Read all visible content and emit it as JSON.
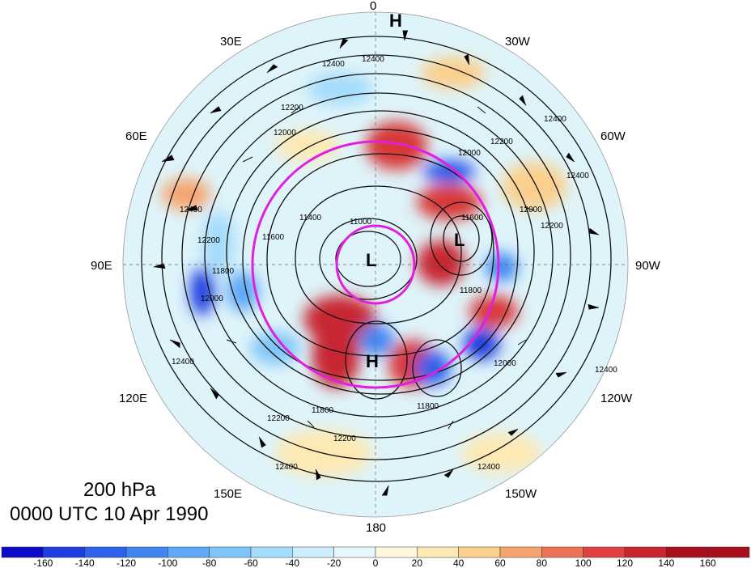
{
  "title": {
    "level": "200 hPa",
    "time": "0000 UTC 10 Apr 1990"
  },
  "map": {
    "projection": "north-polar-stereographic",
    "longitude_labels": [
      "0",
      "30W",
      "60W",
      "90W",
      "120W",
      "150W",
      "180",
      "150E",
      "120E",
      "90E",
      "60E",
      "30E"
    ],
    "contour_labels": [
      "12400",
      "12400",
      "12200",
      "12000",
      "12000",
      "12200",
      "12400",
      "12400",
      "12200",
      "12000",
      "11800",
      "11600",
      "11400",
      "11000",
      "12400",
      "12200",
      "12000",
      "11800",
      "12000",
      "11800",
      "12400",
      "12400",
      "12200",
      "12400",
      "11800",
      "11600",
      "12400",
      "12200"
    ],
    "centers": [
      {
        "type": "H",
        "label": "H"
      },
      {
        "type": "L",
        "label": "L"
      },
      {
        "type": "L",
        "label": "L"
      },
      {
        "type": "H",
        "label": "H"
      }
    ],
    "highlight_color": "#e020e0"
  },
  "colorbar": {
    "tick_labels": [
      "-160",
      "-140",
      "-120",
      "-100",
      "-80",
      "-60",
      "-40",
      "-20",
      "0",
      "20",
      "40",
      "60",
      "80",
      "100",
      "120",
      "140",
      "160"
    ],
    "colors": [
      "#0a0ac8",
      "#1e3ee0",
      "#2f62ea",
      "#3f86f0",
      "#5ea8f5",
      "#7ec4f8",
      "#a4dcfb",
      "#cdeefc",
      "#e6f8fd",
      "#fdf8dc",
      "#fde9b4",
      "#fbcf8c",
      "#f6a46e",
      "#ee7257",
      "#e04040",
      "#c82530",
      "#a8101e"
    ]
  }
}
